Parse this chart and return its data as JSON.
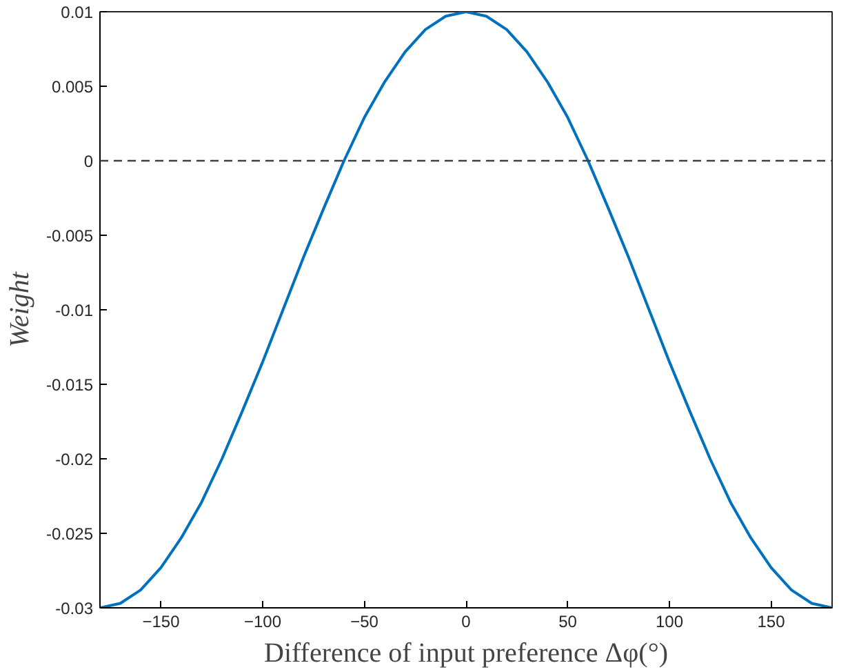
{
  "chart_data": {
    "type": "line",
    "xlabel": "Difference of input preference Δφ(°)",
    "ylabel": "Weight",
    "x": [
      -180,
      -170,
      -160,
      -150,
      -140,
      -130,
      -120,
      -110,
      -100,
      -90,
      -80,
      -70,
      -60,
      -50,
      -40,
      -30,
      -20,
      -10,
      0,
      10,
      20,
      30,
      40,
      50,
      60,
      70,
      80,
      90,
      100,
      110,
      120,
      130,
      140,
      150,
      160,
      170,
      180
    ],
    "series": [
      {
        "color": "#0072bd",
        "values": [
          -0.03,
          -0.0297,
          -0.0288,
          -0.0273,
          -0.0253,
          -0.0229,
          -0.02,
          -0.0168,
          -0.0135,
          -0.01,
          -0.0065,
          -0.0032,
          0,
          0.0029,
          0.0053,
          0.0073,
          0.0088,
          0.0097,
          0.01,
          0.0097,
          0.0088,
          0.0073,
          0.0053,
          0.0029,
          0,
          -0.0032,
          -0.0065,
          -0.01,
          -0.0135,
          -0.0168,
          -0.02,
          -0.0229,
          -0.0253,
          -0.0273,
          -0.0288,
          -0.0297,
          -0.03
        ]
      }
    ],
    "xlim": [
      -180,
      180
    ],
    "ylim": [
      -0.03,
      0.01
    ],
    "xticks": [
      -150,
      -100,
      -50,
      0,
      50,
      100,
      150
    ],
    "yticks": [
      -0.03,
      -0.025,
      -0.02,
      -0.015,
      -0.01,
      -0.005,
      0,
      0.005,
      0.01
    ],
    "ref_lines": [
      {
        "axis": "y",
        "value": 0,
        "color": "#404040",
        "line_style": "dashed"
      }
    ],
    "grid": false,
    "marker": "none",
    "line_style": "solid"
  }
}
